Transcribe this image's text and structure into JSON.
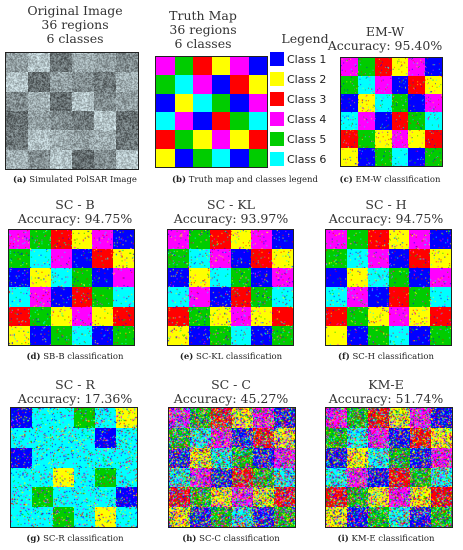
{
  "class_colors": [
    "#0000ff",
    "#ffff00",
    "#ff0000",
    "#ff00ff",
    "#00cc00",
    "#00ffff"
  ],
  "truth": [
    [
      4,
      5,
      3,
      2,
      4,
      1
    ],
    [
      5,
      6,
      4,
      1,
      3,
      2
    ],
    [
      1,
      2,
      6,
      5,
      1,
      4
    ],
    [
      6,
      4,
      1,
      3,
      5,
      6
    ],
    [
      3,
      5,
      2,
      4,
      2,
      3
    ],
    [
      2,
      1,
      5,
      6,
      1,
      5
    ]
  ],
  "legend": {
    "title": "Legend",
    "items": [
      {
        "label": "Class 1",
        "class": 1
      },
      {
        "label": "Class 2",
        "class": 2
      },
      {
        "label": "Class 3",
        "class": 3
      },
      {
        "label": "Class 4",
        "class": 4
      },
      {
        "label": "Class 5",
        "class": 5
      },
      {
        "label": "Class 6",
        "class": 6
      }
    ]
  },
  "panels": [
    {
      "id": "a",
      "title": [
        "Original Image",
        "36 regions",
        "6 classes"
      ],
      "tag": "(a)",
      "caption": "Simulated PolSAR Image",
      "kind": "gray"
    },
    {
      "id": "b",
      "title": [
        "Truth Map",
        "36 regions",
        "6 classes"
      ],
      "tag": "(b)",
      "caption": "Truth map and classes legend",
      "kind": "truth"
    },
    {
      "id": "c",
      "title": [
        "EM-W",
        "Accuracy: 95.40%"
      ],
      "tag": "(c)",
      "caption": "EM-W classification",
      "kind": "noisy",
      "noise": 0.05,
      "seed": 11
    },
    {
      "id": "d",
      "title": [
        "SC - B",
        "Accuracy: 94.75%"
      ],
      "tag": "(d)",
      "caption": "SB-B classification",
      "kind": "noisy",
      "noise": 0.06,
      "seed": 23
    },
    {
      "id": "e",
      "title": [
        "SC - KL",
        "Accuracy: 93.97%"
      ],
      "tag": "(e)",
      "caption": "SC-KL classification",
      "kind": "noisy",
      "noise": 0.07,
      "seed": 37
    },
    {
      "id": "f",
      "title": [
        "SC - H",
        "Accuracy: 94.75%"
      ],
      "tag": "(f)",
      "caption": "SC-H classification",
      "kind": "noisy",
      "noise": 0.06,
      "seed": 41
    },
    {
      "id": "g",
      "title": [
        "SC - R",
        "Accuracy: 17.36%"
      ],
      "tag": "(g)",
      "caption": "SC-R classification",
      "kind": "scr",
      "noise": 0.15,
      "seed": 53
    },
    {
      "id": "h",
      "title": [
        "SC - C",
        "Accuracy: 45.27%"
      ],
      "tag": "(h)",
      "caption": "SC-C classification",
      "kind": "noisy",
      "noise": 0.55,
      "seed": 67
    },
    {
      "id": "i",
      "title": [
        "KM-E",
        "Accuracy: 51.74%"
      ],
      "tag": "(i)",
      "caption": "KM-E classification",
      "kind": "noisy",
      "noise": 0.45,
      "seed": 79
    }
  ]
}
